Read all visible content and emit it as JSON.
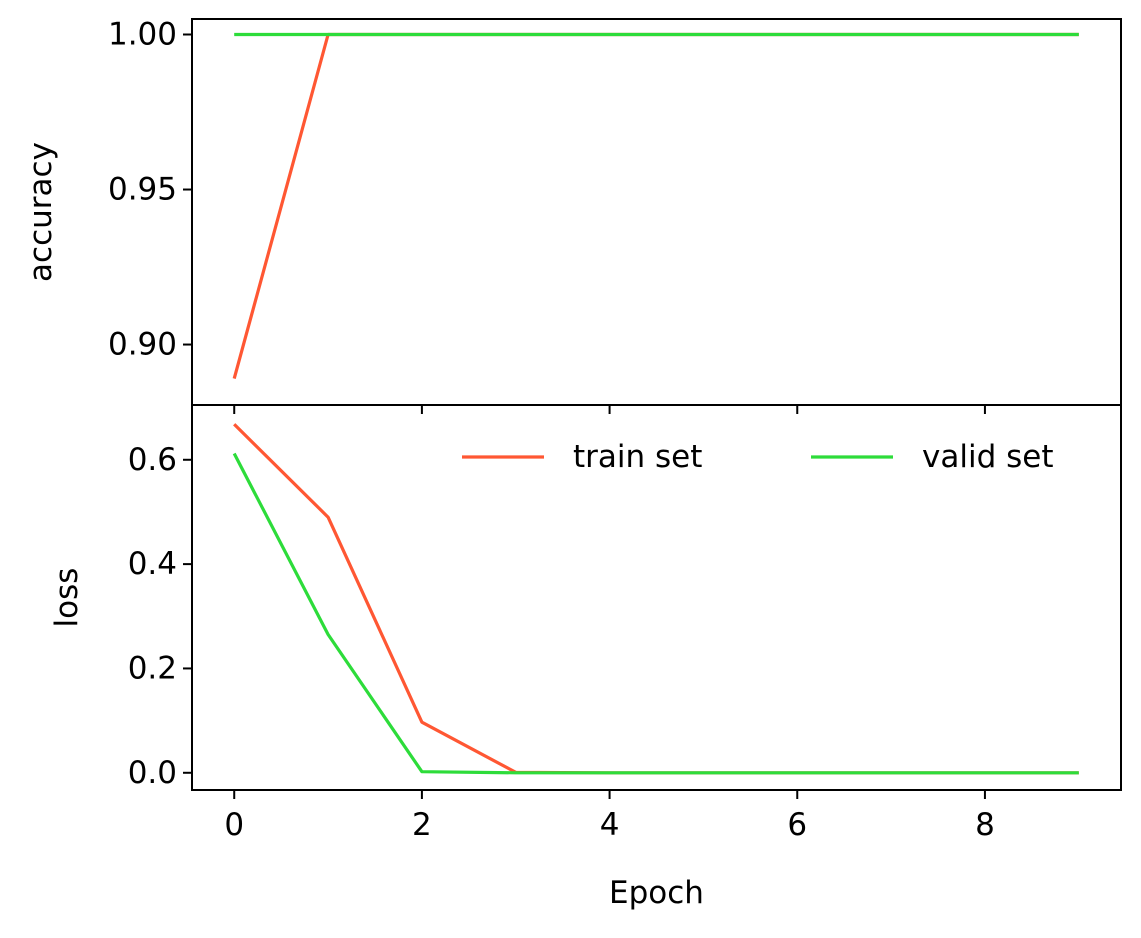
{
  "colors": {
    "train": "#ff5733",
    "valid": "#2ddc3a",
    "axis": "#000000",
    "background": "#ffffff"
  },
  "chart_data": [
    {
      "type": "line",
      "panel": "top",
      "xlabel": "",
      "ylabel": "accuracy",
      "xlim": [
        -0.45,
        9.45
      ],
      "ylim": [
        0.8805,
        1.005
      ],
      "yticks": [
        0.9,
        0.95,
        1.0
      ],
      "ytick_labels": [
        "0.90",
        "0.95",
        "1.00"
      ],
      "xticks": [
        0,
        2,
        4,
        6,
        8
      ],
      "show_xtick_labels": false,
      "grid": false,
      "x": [
        0,
        1,
        2,
        3,
        4,
        5,
        6,
        7,
        8,
        9
      ],
      "series": [
        {
          "key": "train",
          "name": "train set",
          "values": [
            0.889,
            1.0,
            1.0,
            1.0,
            1.0,
            1.0,
            1.0,
            1.0,
            1.0,
            1.0
          ]
        },
        {
          "key": "valid",
          "name": "valid set",
          "values": [
            1.0,
            1.0,
            1.0,
            1.0,
            1.0,
            1.0,
            1.0,
            1.0,
            1.0,
            1.0
          ]
        }
      ]
    },
    {
      "type": "line",
      "panel": "bottom",
      "xlabel": "Epoch",
      "ylabel": "loss",
      "xlim": [
        -0.45,
        9.45
      ],
      "ylim": [
        -0.033,
        0.705
      ],
      "yticks": [
        0.0,
        0.2,
        0.4,
        0.6
      ],
      "ytick_labels": [
        "0.0",
        "0.2",
        "0.4",
        "0.6"
      ],
      "xticks": [
        0,
        2,
        4,
        6,
        8
      ],
      "xtick_labels": [
        "0",
        "2",
        "4",
        "6",
        "8"
      ],
      "show_xtick_labels": true,
      "grid": false,
      "legend": {
        "location": "top-right",
        "columns": 2,
        "frame": false
      },
      "x": [
        0,
        1,
        2,
        3,
        4,
        5,
        6,
        7,
        8,
        9
      ],
      "series": [
        {
          "key": "train",
          "name": "train set",
          "values": [
            0.668,
            0.49,
            0.097,
            0.001,
            0.0,
            0.0,
            0.0,
            0.0,
            0.0,
            0.0
          ]
        },
        {
          "key": "valid",
          "name": "valid set",
          "values": [
            0.612,
            0.265,
            0.002,
            0.0,
            0.0,
            0.0,
            0.0,
            0.0,
            0.0,
            0.0
          ]
        }
      ]
    }
  ]
}
